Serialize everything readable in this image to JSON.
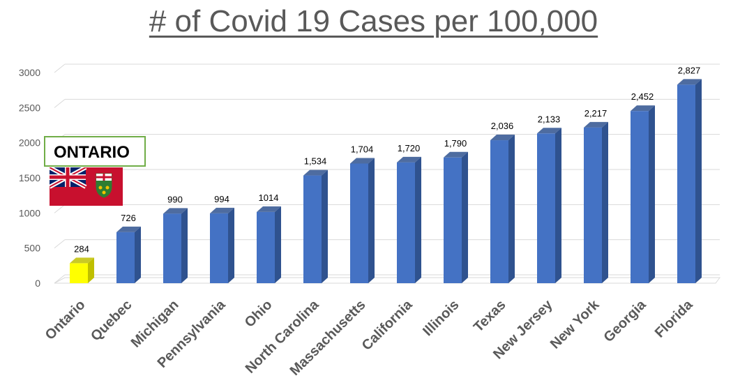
{
  "chart_data": {
    "type": "bar",
    "title": "# of Covid 19 Cases per 100,000",
    "categories": [
      "Ontario",
      "Quebec",
      "Michigan",
      "Pennsylvania",
      "Ohio",
      "North Carolina",
      "Massachusetts",
      "California",
      "Illinois",
      "Texas",
      "New Jersey",
      "New York",
      "Georgia",
      "Florida"
    ],
    "values": [
      284,
      726,
      990,
      994,
      1014,
      1534,
      1704,
      1720,
      1790,
      2036,
      2133,
      2217,
      2452,
      2827
    ],
    "data_labels": [
      "284",
      "726",
      "990",
      "994",
      "1014",
      "1,534",
      "1,704",
      "1,720",
      "1,790",
      "2,036",
      "2,133",
      "2,217",
      "2,452",
      "2,827"
    ],
    "ylim": [
      0,
      3000
    ],
    "yticks": [
      0,
      500,
      1000,
      1500,
      2000,
      2500,
      3000
    ],
    "xlabel": "",
    "ylabel": "",
    "grid": true,
    "highlight_category": "Ontario",
    "colors": {
      "bar": "#4472C4",
      "bar_side": "#2F528F",
      "highlight": "#FFFF00",
      "highlight_side": "#BFBF00",
      "grid": "#D9D9D9"
    }
  },
  "annotation": {
    "label": "ONTARIO",
    "border_color": "#70AD47"
  },
  "flag": {
    "field_color": "#C8102E"
  }
}
